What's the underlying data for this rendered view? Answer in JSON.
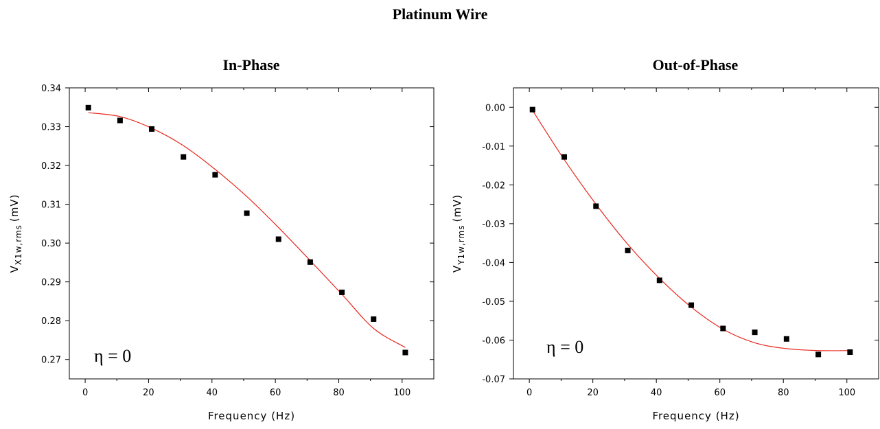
{
  "title": "Platinum Wire",
  "chart_data": [
    {
      "type": "scatter",
      "title": "In-Phase",
      "xlabel": "Frequency (Hz)",
      "ylabel_main": "V",
      "ylabel_sub": "X1w,rms",
      "ylabel_unit": "(mV)",
      "xlim": [
        -5,
        110
      ],
      "ylim": [
        0.265,
        0.34
      ],
      "xticks": [
        0,
        20,
        40,
        60,
        80,
        100
      ],
      "yticks": [
        0.27,
        0.28,
        0.29,
        0.3,
        0.31,
        0.32,
        0.33,
        0.34
      ],
      "yticks_decimals": 2,
      "grid": false,
      "annotation": "η = 0",
      "marker_color": "#000000",
      "fit_color": "#e8261c",
      "series": [
        {
          "x": [
            1,
            11,
            21,
            31,
            41,
            51,
            61,
            71,
            81,
            91,
            101
          ],
          "y": [
            0.3349,
            0.3316,
            0.3294,
            0.3222,
            0.3176,
            0.3077,
            0.301,
            0.2951,
            0.2873,
            0.2804,
            0.2718
          ]
        }
      ],
      "fit": {
        "x": [
          1,
          11,
          21,
          31,
          41,
          51,
          61,
          71,
          81,
          91,
          101
        ],
        "y": [
          0.3336,
          0.3326,
          0.3296,
          0.3251,
          0.319,
          0.312,
          0.304,
          0.2955,
          0.2868,
          0.278,
          0.2731
        ]
      }
    },
    {
      "type": "scatter",
      "title": "Out-of-Phase",
      "xlabel": "Frequency (Hz)",
      "ylabel_main": "V",
      "ylabel_sub": "Y1w,rms",
      "ylabel_unit": "(mV)",
      "xlim": [
        -5,
        110
      ],
      "ylim": [
        -0.07,
        0.005
      ],
      "xticks": [
        0,
        20,
        40,
        60,
        80,
        100
      ],
      "yticks": [
        0.0,
        -0.01,
        -0.02,
        -0.03,
        -0.04,
        -0.05,
        -0.06,
        -0.07
      ],
      "yticks_decimals": 2,
      "grid": false,
      "annotation": "η = 0",
      "marker_color": "#000000",
      "fit_color": "#e8261c",
      "series": [
        {
          "x": [
            1,
            11,
            21,
            31,
            41,
            51,
            61,
            71,
            81,
            91,
            101
          ],
          "y": [
            -0.0006,
            -0.0128,
            -0.0255,
            -0.0369,
            -0.0446,
            -0.051,
            -0.057,
            -0.058,
            -0.0597,
            -0.0637,
            -0.0631
          ]
        }
      ],
      "fit": {
        "x": [
          1,
          11,
          21,
          31,
          41,
          51,
          61,
          71,
          81,
          91,
          101
        ],
        "y": [
          -0.0008,
          -0.0135,
          -0.025,
          -0.0353,
          -0.0441,
          -0.0515,
          -0.0572,
          -0.0607,
          -0.0622,
          -0.0627,
          -0.0627
        ]
      }
    }
  ]
}
